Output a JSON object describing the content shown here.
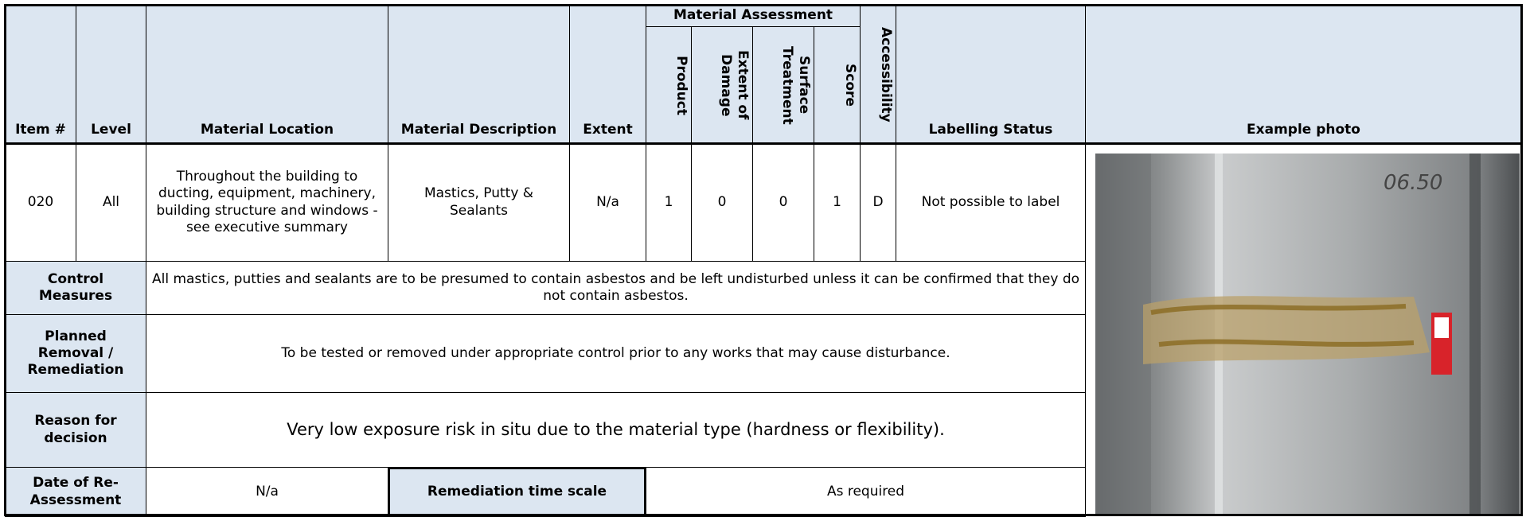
{
  "header": {
    "item_no": "Item #",
    "level": "Level",
    "material_location": "Material Location",
    "material_description": "Material Description",
    "extent": "Extent",
    "material_assessment": "Material Assessment",
    "product": "Product",
    "extent_of_damage": "Extent of Damage",
    "surface_treatment": "Surface Treatment",
    "score": "Score",
    "accessibility": "Accessibility",
    "labelling_status": "Labelling Status",
    "example_photo": "Example photo"
  },
  "row": {
    "item_no": "020",
    "level": "All",
    "material_location": "Throughout the building to ducting, equipment, machinery, building structure and windows - see executive summary",
    "material_description": "Mastics, Putty & Sealants",
    "extent": "N/a",
    "product": 1,
    "extent_of_damage": 0,
    "surface_treatment": 0,
    "score": 1,
    "accessibility": "D",
    "labelling_status": "Not possible to label"
  },
  "control_measures": {
    "label": "Control Measures",
    "text": "All mastics, putties and sealants are to be presumed to contain asbestos and be left undisturbed unless it can be confirmed that they do not contain asbestos."
  },
  "planned_removal": {
    "label": "Planned Removal / Remediation",
    "text": "To be tested or removed under appropriate control prior to any works that may cause disturbance."
  },
  "reason_for_decision": {
    "label": "Reason for decision",
    "text": "Very low exposure risk in situ due to the material type (hardness or flexibility)."
  },
  "date_of_reassessment": {
    "label": "Date of Re-Assessment",
    "value": "N/a"
  },
  "remediation_time_scale": {
    "label": "Remediation time scale",
    "value": "As required"
  }
}
